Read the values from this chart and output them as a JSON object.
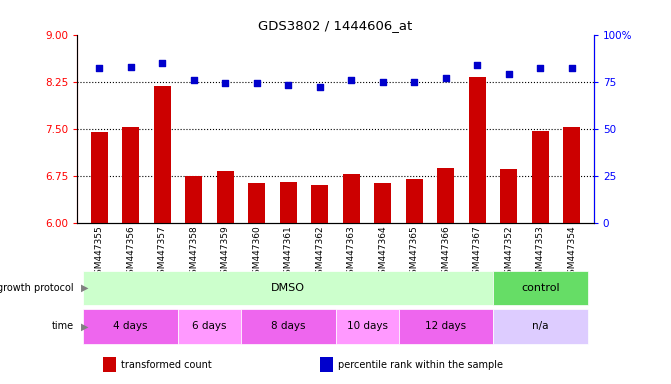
{
  "title": "GDS3802 / 1444606_at",
  "samples": [
    "GSM447355",
    "GSM447356",
    "GSM447357",
    "GSM447358",
    "GSM447359",
    "GSM447360",
    "GSM447361",
    "GSM447362",
    "GSM447363",
    "GSM447364",
    "GSM447365",
    "GSM447366",
    "GSM447367",
    "GSM447352",
    "GSM447353",
    "GSM447354"
  ],
  "transformed_count": [
    7.45,
    7.52,
    8.18,
    6.74,
    6.82,
    6.63,
    6.65,
    6.6,
    6.78,
    6.63,
    6.7,
    6.88,
    8.32,
    6.86,
    7.46,
    7.52
  ],
  "percentile_rank": [
    82,
    83,
    85,
    76,
    74,
    74,
    73,
    72,
    76,
    75,
    75,
    77,
    84,
    79,
    82,
    82
  ],
  "ylim_left": [
    6,
    9
  ],
  "ylim_right": [
    0,
    100
  ],
  "yticks_left": [
    6,
    6.75,
    7.5,
    8.25,
    9
  ],
  "yticks_right": [
    0,
    25,
    50,
    75,
    100
  ],
  "bar_color": "#cc0000",
  "dot_color": "#0000cc",
  "grid_lines": [
    6.75,
    7.5,
    8.25
  ],
  "growth_protocol_groups": [
    {
      "label": "DMSO",
      "start": 0,
      "end": 12,
      "color": "#ccffcc"
    },
    {
      "label": "control",
      "start": 13,
      "end": 15,
      "color": "#66dd66"
    }
  ],
  "time_groups": [
    {
      "label": "4 days",
      "start": 0,
      "end": 2,
      "color": "#ee66ee"
    },
    {
      "label": "6 days",
      "start": 3,
      "end": 4,
      "color": "#ff99ff"
    },
    {
      "label": "8 days",
      "start": 5,
      "end": 7,
      "color": "#ee66ee"
    },
    {
      "label": "10 days",
      "start": 8,
      "end": 9,
      "color": "#ff99ff"
    },
    {
      "label": "12 days",
      "start": 10,
      "end": 12,
      "color": "#ee66ee"
    },
    {
      "label": "n/a",
      "start": 13,
      "end": 15,
      "color": "#ddccff"
    }
  ],
  "legend_items": [
    {
      "label": "transformed count",
      "color": "#cc0000"
    },
    {
      "label": "percentile rank within the sample",
      "color": "#0000cc"
    }
  ]
}
